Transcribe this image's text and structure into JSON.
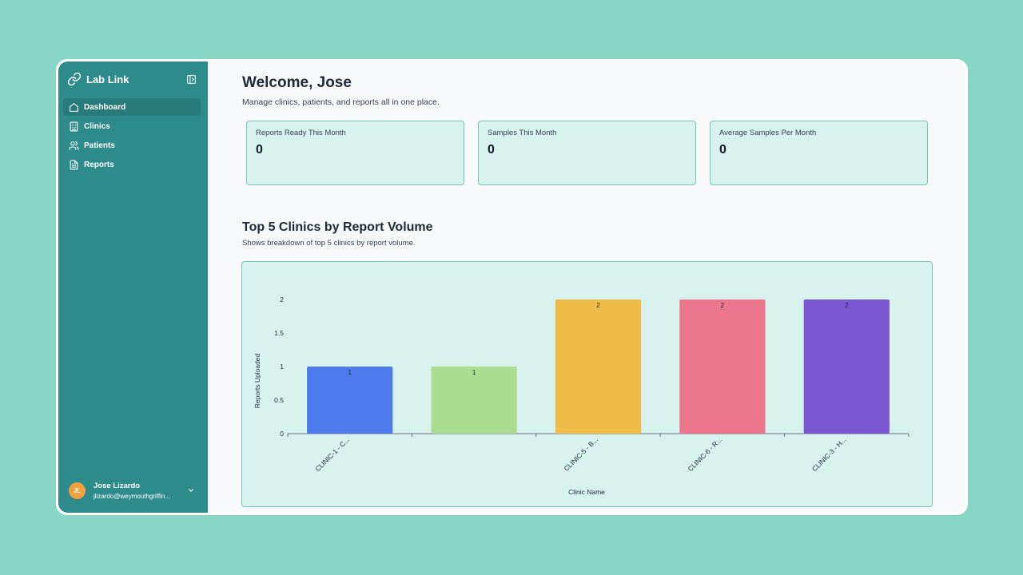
{
  "sidebar": {
    "brand": "Lab Link",
    "nav": [
      {
        "label": "Dashboard",
        "icon": "home-icon",
        "active": true
      },
      {
        "label": "Clinics",
        "icon": "building-icon",
        "active": false
      },
      {
        "label": "Patients",
        "icon": "users-icon",
        "active": false
      },
      {
        "label": "Reports",
        "icon": "file-icon",
        "active": false
      }
    ],
    "user": {
      "initials": "JL",
      "name": "Jose Lizardo",
      "email": "jlizardo@weymouthgriffin..."
    }
  },
  "main": {
    "welcome": "Welcome, Jose",
    "subtitle": "Manage clinics, patients, and reports all in one place.",
    "cards": [
      {
        "label": "Reports Ready This Month",
        "value": "0"
      },
      {
        "label": "Samples This Month",
        "value": "0"
      },
      {
        "label": "Average Samples Per Month",
        "value": "0"
      }
    ],
    "section": {
      "title": "Top 5 Clinics by Report Volume",
      "subtitle": "Shows breakdown of top 5 clinics by report volume."
    }
  },
  "colors": {
    "sidebar": "#2d8b8c",
    "sidebar_active": "#287a7b",
    "card_bg": "#d8f2ee",
    "card_border": "#74c4b5",
    "avatar": "#f0a13c"
  },
  "chart_data": {
    "type": "bar",
    "categories": [
      "CLINIC-1 - C...",
      "",
      "CLINIC-5 - B...",
      "CLINIC-6 - R...",
      "CLINIC-3 - H..."
    ],
    "values": [
      1,
      1,
      2,
      2,
      2
    ],
    "colors": [
      "#4d7bec",
      "#abdd91",
      "#f0bb46",
      "#ec778c",
      "#7b57d4"
    ],
    "xlabel": "Clinic Name",
    "ylabel": "Reports Uploaded",
    "ylim": [
      0,
      2
    ],
    "yticks": [
      "0",
      "0.5",
      "1",
      "1.5",
      "2"
    ],
    "data_labels": [
      "1",
      "1",
      "2",
      "2",
      "2"
    ],
    "grid": false
  }
}
